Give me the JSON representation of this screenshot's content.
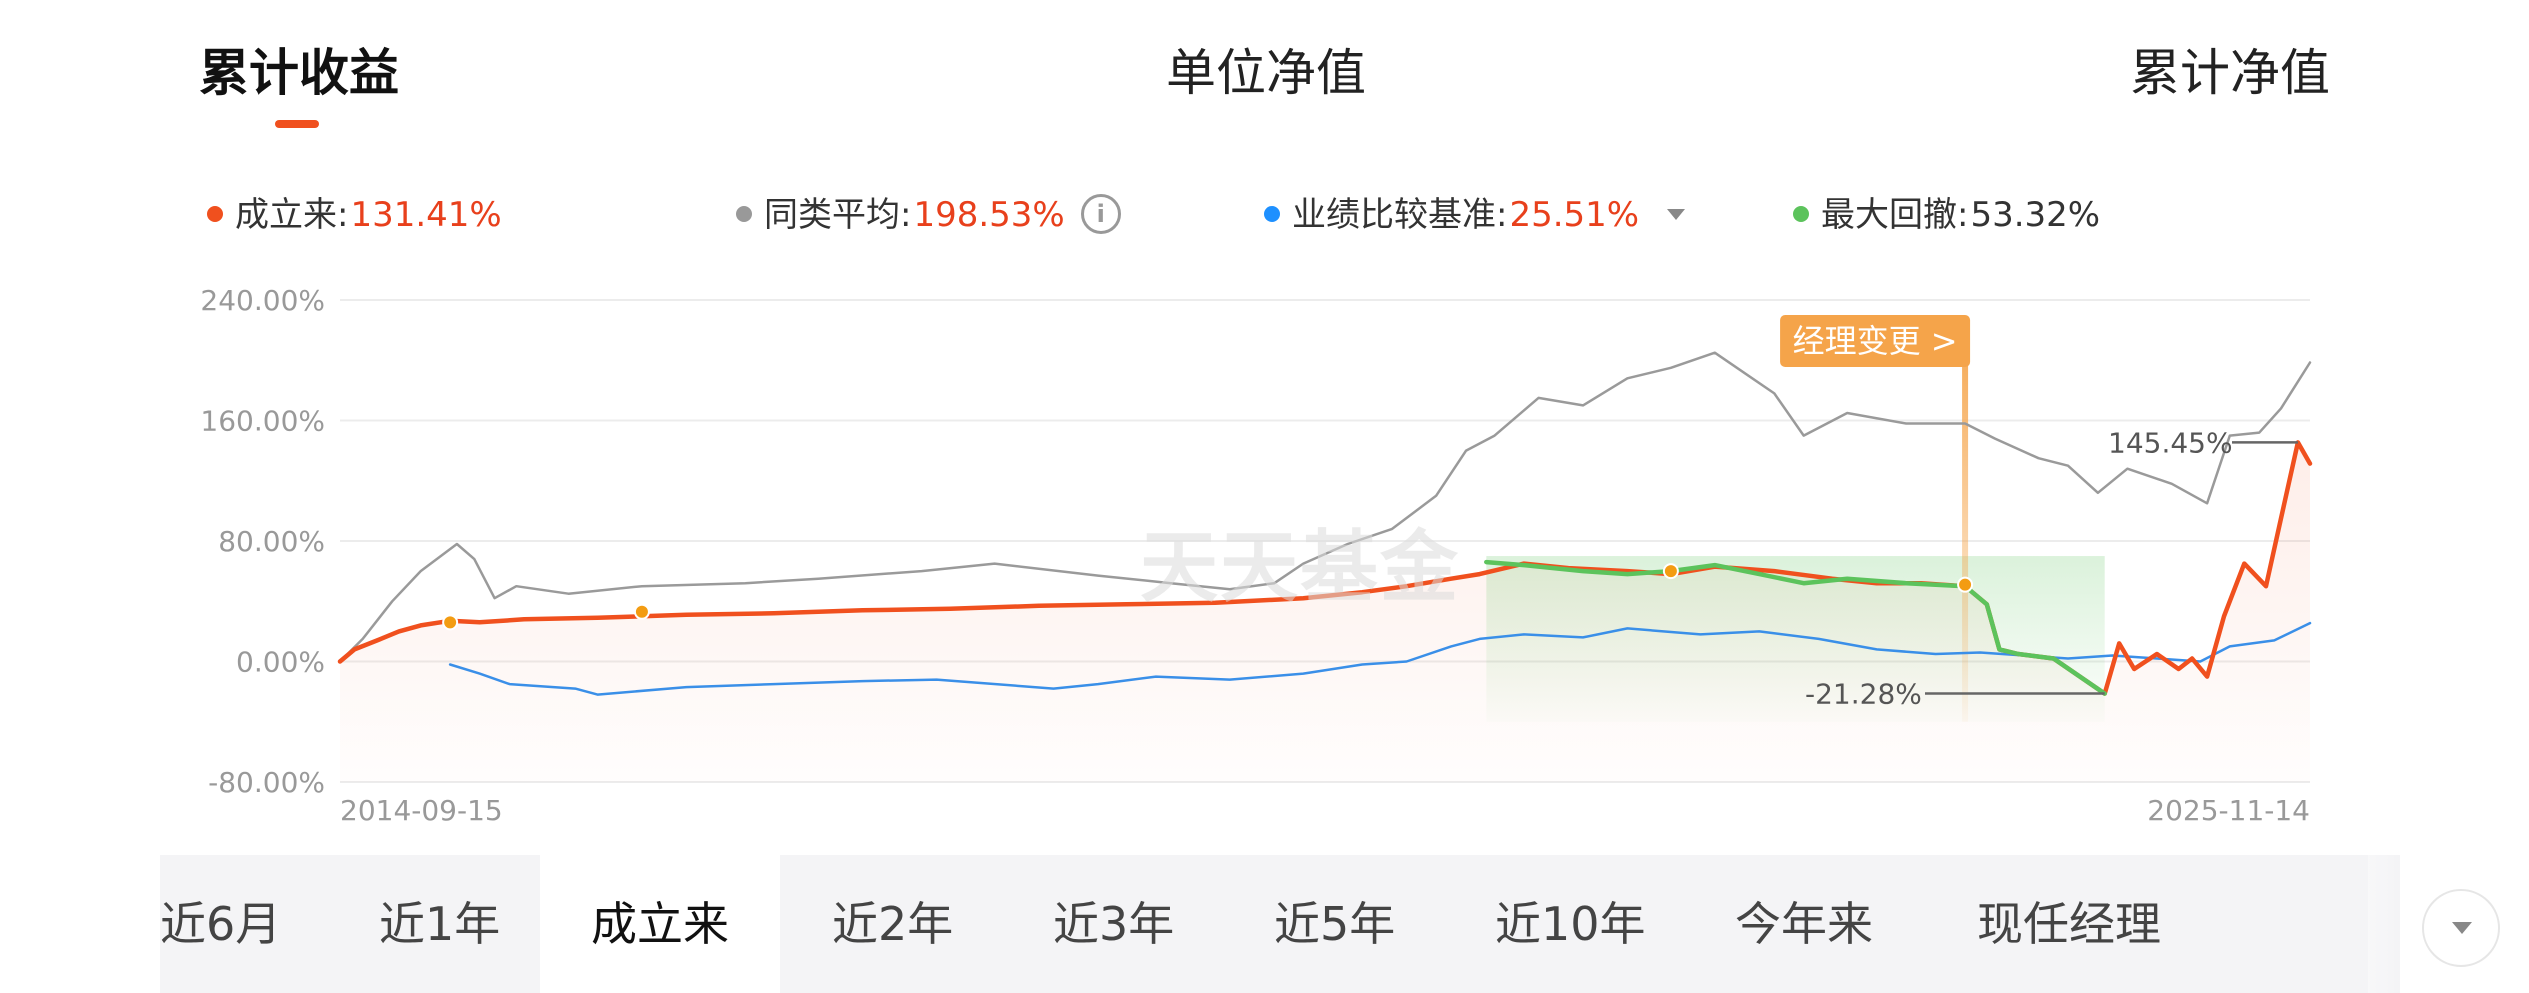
{
  "tabs": {
    "cumulative_return": "累计收益",
    "unit_nav": "单位净值",
    "cumulative_nav": "累计净值"
  },
  "legend": {
    "since_inception": {
      "label": "成立来:",
      "value": "131.41%",
      "color": "#f0501e"
    },
    "peer_average": {
      "label": "同类平均:",
      "value": "198.53%",
      "color": "#999999",
      "icon": "info-icon"
    },
    "benchmark": {
      "label": "业绩比较基准:",
      "value": "25.51%",
      "color": "#1e90ff",
      "icon": "caret-down-icon"
    },
    "max_drawdown": {
      "label": "最大回撤:",
      "value": "53.32%",
      "color": "#5cc35c"
    }
  },
  "watermark": "天天基金",
  "periods": [
    "近6月",
    "近1年",
    "成立来",
    "近2年",
    "近3年",
    "近5年",
    "近10年",
    "今年来",
    "现任经理"
  ],
  "active_period": "成立来",
  "chart_data": {
    "type": "line",
    "x_range": [
      "2014-09-15",
      "2025-11-14"
    ],
    "xticks": [
      "2014-09-15",
      "2025-11-14"
    ],
    "yticks": [
      "240.00%",
      "160.00%",
      "80.00%",
      "0.00%",
      "-80.00%"
    ],
    "ylim": [
      -80,
      240
    ],
    "y_unit": "%",
    "grid": true,
    "series": [
      {
        "key": "fund",
        "name": "成立来",
        "color": "#f0501e",
        "points": [
          [
            "2014-09-15",
            0
          ],
          [
            "2014-10-15",
            8
          ],
          [
            "2014-12-01",
            14
          ],
          [
            "2015-01-15",
            20
          ],
          [
            "2015-03-01",
            24
          ],
          [
            "2015-05-01",
            27
          ],
          [
            "2015-07-01",
            26
          ],
          [
            "2015-10-01",
            28
          ],
          [
            "2016-03-01",
            29
          ],
          [
            "2016-09-01",
            31
          ],
          [
            "2017-03-01",
            32
          ],
          [
            "2017-09-01",
            34
          ],
          [
            "2018-03-01",
            35
          ],
          [
            "2018-09-01",
            37
          ],
          [
            "2019-03-01",
            38
          ],
          [
            "2019-09-01",
            39
          ],
          [
            "2020-03-01",
            42
          ],
          [
            "2020-07-01",
            46
          ],
          [
            "2020-10-01",
            50
          ],
          [
            "2021-01-01",
            55
          ],
          [
            "2021-03-01",
            58
          ],
          [
            "2021-06-01",
            65
          ],
          [
            "2021-09-01",
            62
          ],
          [
            "2022-01-01",
            60
          ],
          [
            "2022-04-01",
            58
          ],
          [
            "2022-07-01",
            63
          ],
          [
            "2022-11-01",
            60
          ],
          [
            "2023-03-01",
            55
          ],
          [
            "2023-06-01",
            52
          ],
          [
            "2023-09-01",
            52
          ],
          [
            "2023-12-01",
            50
          ],
          [
            "2024-01-15",
            38
          ],
          [
            "2024-02-10",
            8
          ],
          [
            "2024-03-20",
            5
          ],
          [
            "2024-06-01",
            2
          ],
          [
            "2024-09-15",
            -21.28
          ],
          [
            "2024-10-15",
            12
          ],
          [
            "2024-11-15",
            -5
          ],
          [
            "2025-01-01",
            5
          ],
          [
            "2025-02-15",
            -5
          ],
          [
            "2025-03-15",
            2
          ],
          [
            "2025-04-15",
            -10
          ],
          [
            "2025-05-20",
            30
          ],
          [
            "2025-07-01",
            65
          ],
          [
            "2025-08-15",
            50
          ],
          [
            "2025-09-15",
            95
          ],
          [
            "2025-10-20",
            145.45
          ],
          [
            "2025-11-14",
            131.41
          ]
        ]
      },
      {
        "key": "peer",
        "name": "同类平均",
        "color": "#9a9a9a",
        "points": [
          [
            "2014-09-15",
            0
          ],
          [
            "2014-11-01",
            15
          ],
          [
            "2015-01-01",
            40
          ],
          [
            "2015-03-01",
            60
          ],
          [
            "2015-05-15",
            78
          ],
          [
            "2015-06-20",
            68
          ],
          [
            "2015-08-01",
            42
          ],
          [
            "2015-09-15",
            50
          ],
          [
            "2016-01-01",
            45
          ],
          [
            "2016-06-01",
            50
          ],
          [
            "2017-01-01",
            52
          ],
          [
            "2017-06-01",
            55
          ],
          [
            "2018-01-01",
            60
          ],
          [
            "2018-06-01",
            65
          ],
          [
            "2019-01-01",
            57
          ],
          [
            "2019-06-01",
            52
          ],
          [
            "2019-10-01",
            48
          ],
          [
            "2020-01-01",
            52
          ],
          [
            "2020-03-01",
            65
          ],
          [
            "2020-06-01",
            78
          ],
          [
            "2020-09-01",
            88
          ],
          [
            "2020-12-01",
            110
          ],
          [
            "2021-02-01",
            140
          ],
          [
            "2021-04-01",
            150
          ],
          [
            "2021-07-01",
            175
          ],
          [
            "2021-10-01",
            170
          ],
          [
            "2022-01-01",
            188
          ],
          [
            "2022-04-01",
            195
          ],
          [
            "2022-07-01",
            205
          ],
          [
            "2022-11-01",
            178
          ],
          [
            "2023-01-01",
            150
          ],
          [
            "2023-04-01",
            165
          ],
          [
            "2023-08-01",
            158
          ],
          [
            "2023-12-01",
            158
          ],
          [
            "2024-02-01",
            148
          ],
          [
            "2024-05-01",
            135
          ],
          [
            "2024-07-01",
            130
          ],
          [
            "2024-09-01",
            112
          ],
          [
            "2024-11-01",
            128
          ],
          [
            "2025-02-01",
            118
          ],
          [
            "2025-04-15",
            105
          ],
          [
            "2025-06-01",
            150
          ],
          [
            "2025-08-01",
            152
          ],
          [
            "2025-09-15",
            168
          ],
          [
            "2025-11-14",
            198.53
          ]
        ]
      },
      {
        "key": "benchmark",
        "name": "业绩比较基准",
        "color": "#3a8fe8",
        "points": [
          [
            "2015-05-01",
            -2
          ],
          [
            "2015-07-01",
            -8
          ],
          [
            "2015-09-01",
            -15
          ],
          [
            "2016-01-15",
            -18
          ],
          [
            "2016-03-01",
            -22
          ],
          [
            "2016-09-01",
            -17
          ],
          [
            "2017-03-01",
            -15
          ],
          [
            "2017-09-01",
            -13
          ],
          [
            "2018-02-01",
            -12
          ],
          [
            "2018-10-01",
            -18
          ],
          [
            "2019-01-01",
            -15
          ],
          [
            "2019-05-01",
            -10
          ],
          [
            "2019-10-01",
            -12
          ],
          [
            "2020-03-01",
            -8
          ],
          [
            "2020-07-01",
            -2
          ],
          [
            "2020-10-01",
            0
          ],
          [
            "2021-01-01",
            10
          ],
          [
            "2021-03-01",
            15
          ],
          [
            "2021-06-01",
            18
          ],
          [
            "2021-10-01",
            16
          ],
          [
            "2022-01-01",
            22
          ],
          [
            "2022-06-01",
            18
          ],
          [
            "2022-10-01",
            20
          ],
          [
            "2023-02-01",
            15
          ],
          [
            "2023-06-01",
            8
          ],
          [
            "2023-10-01",
            5
          ],
          [
            "2024-01-01",
            6
          ],
          [
            "2024-04-01",
            4
          ],
          [
            "2024-07-01",
            2
          ],
          [
            "2024-10-01",
            4
          ],
          [
            "2025-01-01",
            2
          ],
          [
            "2025-04-01",
            0
          ],
          [
            "2025-06-01",
            10
          ],
          [
            "2025-09-01",
            14
          ],
          [
            "2025-11-14",
            25.51
          ]
        ]
      },
      {
        "key": "drawdown",
        "name": "最大回撤",
        "color": "#5cc35c",
        "points": [
          [
            "2021-03-15",
            66
          ],
          [
            "2021-06-01",
            64
          ],
          [
            "2021-10-01",
            60
          ],
          [
            "2022-01-01",
            58
          ],
          [
            "2022-04-01",
            60
          ],
          [
            "2022-07-01",
            64
          ],
          [
            "2022-10-01",
            58
          ],
          [
            "2023-01-01",
            52
          ],
          [
            "2023-04-01",
            55
          ],
          [
            "2023-08-01",
            52
          ],
          [
            "2023-12-01",
            50
          ],
          [
            "2024-01-15",
            38
          ],
          [
            "2024-02-10",
            8
          ],
          [
            "2024-03-20",
            5
          ],
          [
            "2024-06-01",
            2
          ],
          [
            "2024-09-15",
            -21.28
          ]
        ]
      }
    ],
    "markers": [
      {
        "date": "2015-05-01",
        "value": 26,
        "color": "#f39c12"
      },
      {
        "date": "2016-06-01",
        "value": 33,
        "color": "#f39c12"
      },
      {
        "date": "2022-04-01",
        "value": 60,
        "color": "#f39c12"
      },
      {
        "date": "2023-12-01",
        "value": 51,
        "color": "#f39c12"
      }
    ],
    "drawdown_region": {
      "start": "2021-03-15",
      "end": "2024-09-15"
    },
    "manager_change": {
      "date": "2023-12-01",
      "label": "经理变更 >",
      "color": "#f5a44a"
    },
    "annotations": [
      {
        "text": "145.45%",
        "date": "2025-10-20",
        "value": 145.45,
        "anchor": "left"
      },
      {
        "text": "-21.28%",
        "date": "2024-09-15",
        "value": -21.28,
        "anchor": "left"
      }
    ]
  }
}
